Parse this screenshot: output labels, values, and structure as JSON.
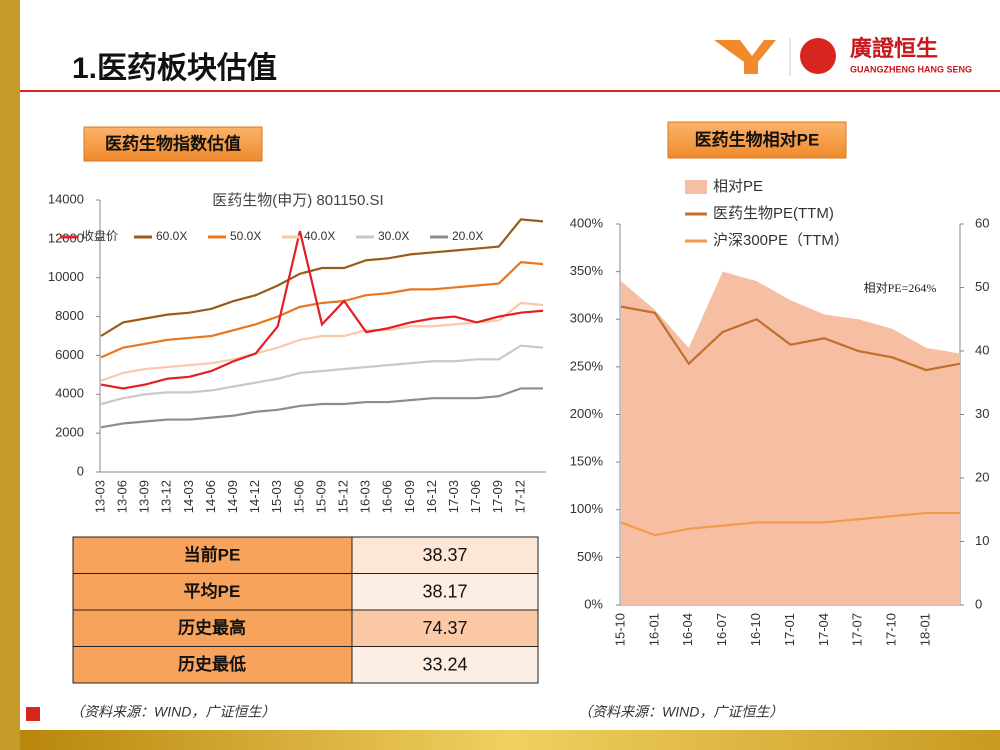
{
  "header": {
    "title": "1.医药板块估值",
    "logo_name": "廣證恒生",
    "logo_sub": "GUANGZHENG HANG SENG"
  },
  "panels": [
    {
      "label": "医药生物指数估值",
      "source": "（资料来源：WIND，广证恒生）"
    },
    {
      "label": "医药生物相对PE",
      "source": "（资料来源：WIND，广证恒生）"
    }
  ],
  "table": {
    "rows": [
      [
        "当前PE",
        "38.37"
      ],
      [
        "平均PE",
        "38.17"
      ],
      [
        "历史最高",
        "74.37"
      ],
      [
        "历史最低",
        "33.24"
      ]
    ]
  },
  "chart_data": [
    {
      "type": "line",
      "title": "医药生物(申万) 801150.SI",
      "legend": "top",
      "categories": [
        "13-03",
        "13-06",
        "13-09",
        "13-12",
        "14-03",
        "14-06",
        "14-09",
        "14-12",
        "15-03",
        "15-06",
        "15-09",
        "15-12",
        "16-03",
        "16-06",
        "16-09",
        "16-12",
        "17-03",
        "17-06",
        "17-09",
        "17-12",
        null
      ],
      "ylim": [
        0,
        14000
      ],
      "yticks": [
        0,
        2000,
        4000,
        6000,
        8000,
        10000,
        12000,
        14000
      ],
      "series": [
        {
          "name": "收盘价",
          "color": "#e31e24",
          "values": [
            4500,
            4300,
            4500,
            4800,
            4900,
            5200,
            5700,
            6100,
            7500,
            12400,
            7600,
            8800,
            7200,
            7400,
            7700,
            7900,
            8000,
            7700,
            8000,
            8200,
            8300
          ]
        },
        {
          "name": "60.0X",
          "color": "#9c5a1a",
          "values": [
            7000,
            7700,
            7900,
            8100,
            8200,
            8400,
            8800,
            9100,
            9600,
            10200,
            10500,
            10500,
            10900,
            11000,
            11200,
            11300,
            11400,
            11500,
            11600,
            13000,
            12900
          ]
        },
        {
          "name": "50.0X",
          "color": "#e87722",
          "values": [
            5900,
            6400,
            6600,
            6800,
            6900,
            7000,
            7300,
            7600,
            8000,
            8500,
            8700,
            8800,
            9100,
            9200,
            9400,
            9400,
            9500,
            9600,
            9700,
            10800,
            10700
          ]
        },
        {
          "name": "40.0X",
          "color": "#f9c9a9",
          "values": [
            4700,
            5100,
            5300,
            5400,
            5500,
            5600,
            5800,
            6100,
            6400,
            6800,
            7000,
            7000,
            7300,
            7300,
            7500,
            7500,
            7600,
            7700,
            7800,
            8700,
            8600
          ]
        },
        {
          "name": "30.0X",
          "color": "#c8c8c8",
          "values": [
            3500,
            3800,
            4000,
            4100,
            4100,
            4200,
            4400,
            4600,
            4800,
            5100,
            5200,
            5300,
            5400,
            5500,
            5600,
            5700,
            5700,
            5800,
            5800,
            6500,
            6400
          ]
        },
        {
          "name": "20.0X",
          "color": "#8c8c8c",
          "values": [
            2300,
            2500,
            2600,
            2700,
            2700,
            2800,
            2900,
            3100,
            3200,
            3400,
            3500,
            3500,
            3600,
            3600,
            3700,
            3800,
            3800,
            3800,
            3900,
            4300,
            4300
          ]
        }
      ]
    },
    {
      "type": "line",
      "annotation": "相对PE=264%",
      "legend": "top-left",
      "categories": [
        "15-10",
        "16-01",
        "16-04",
        "16-07",
        "16-10",
        "17-01",
        "17-04",
        "17-07",
        "17-10",
        "18-01",
        null
      ],
      "ylim": [
        0,
        400
      ],
      "yticks": [
        {
          "value": 0,
          "label": "0%"
        },
        {
          "value": 50,
          "label": "50%"
        },
        {
          "value": 100,
          "label": "100%"
        },
        {
          "value": 150,
          "label": "150%"
        },
        {
          "value": 200,
          "label": "200%"
        },
        {
          "value": 250,
          "label": "250%"
        },
        {
          "value": 300,
          "label": "300%"
        },
        {
          "value": 350,
          "label": "350%"
        },
        {
          "value": 400,
          "label": "400%"
        }
      ],
      "y2lim": [
        0,
        60
      ],
      "y2ticks": [
        0,
        10,
        20,
        30,
        40,
        50,
        60
      ],
      "series": [
        {
          "name": "相对PE",
          "type": "area",
          "color": "#f6bfa3",
          "values": [
            340,
            310,
            270,
            350,
            340,
            320,
            305,
            300,
            290,
            270,
            264
          ]
        },
        {
          "name": "医药生物PE(TTM)",
          "axis": "y2",
          "color": "#c0702a",
          "values": [
            47,
            46,
            38,
            43,
            45,
            41,
            42,
            40,
            39,
            37,
            38
          ]
        },
        {
          "name": "沪深300PE（TTM）",
          "axis": "y2",
          "color": "#f39a4a",
          "values": [
            13,
            11,
            12,
            12.5,
            13,
            13,
            13,
            13.5,
            14,
            14.5,
            14.5
          ]
        }
      ]
    }
  ]
}
